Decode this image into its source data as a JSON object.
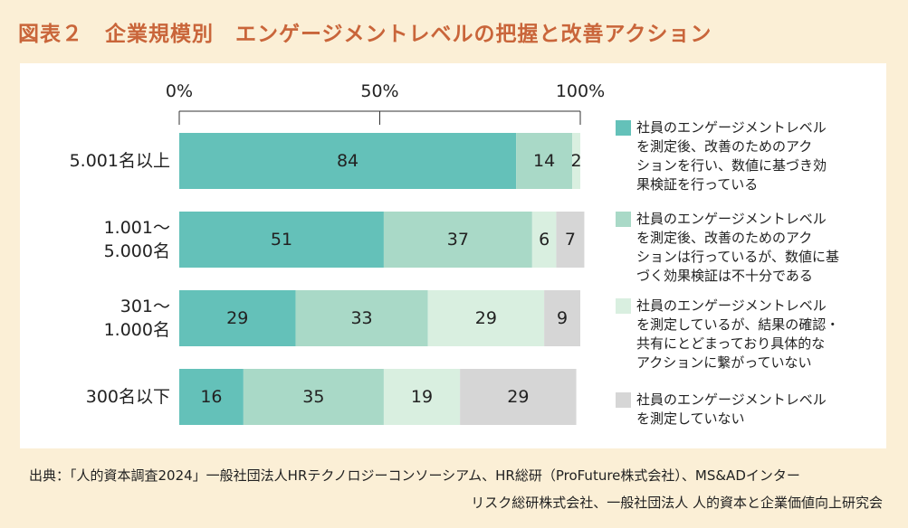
{
  "title": "図表２　企業規模別　エンゲージメントレベルの把握と改善アクション",
  "chart_data": {
    "type": "bar",
    "orientation": "horizontal",
    "stacked": true,
    "xlim": [
      0,
      100
    ],
    "x_ticks": [
      "0%",
      "50%",
      "100%"
    ],
    "categories": [
      "5.001名以上",
      "1.001～\n5.000名",
      "301～\n1.000名",
      "300名以下"
    ],
    "category_lines": [
      [
        "5.001名以上"
      ],
      [
        "1.001～",
        "5.000名"
      ],
      [
        "301～",
        "1.000名"
      ],
      [
        "300名以下"
      ]
    ],
    "series": [
      {
        "name": "社員のエンゲージメントレベルを測定後、改善のためのアクションを行い、数値に基づき効果検証を行っている",
        "color": "#64c1b9",
        "values": [
          84,
          51,
          29,
          16
        ]
      },
      {
        "name": "社員のエンゲージメントレベルを測定後、改善のためのアクションは行っているが、数値に基づく効果検証は不十分である",
        "color": "#a9d9c7",
        "values": [
          14,
          37,
          33,
          35
        ]
      },
      {
        "name": "社員のエンゲージメントレベルを測定しているが、結果の確認・共有にとどまっており具体的なアクションに繋がっていない",
        "color": "#d9efe0",
        "values": [
          2,
          6,
          29,
          19
        ]
      },
      {
        "name": "社員のエンゲージメントレベルを測定していない",
        "color": "#d6d6d6",
        "values": [
          0,
          7,
          9,
          29
        ]
      }
    ],
    "legend_lines": [
      [
        "社員のエンゲージメントレベル",
        "を測定後、改善のためのアク",
        "ションを行い、数値に基づき効",
        "果検証を行っている"
      ],
      [
        "社員のエンゲージメントレベル",
        "を測定後、改善のためのアク",
        "ションは行っているが、数値に基",
        "づく効果検証は不十分である"
      ],
      [
        "社員のエンゲージメントレベル",
        "を測定しているが、結果の確認・",
        "共有にとどまっており具体的な",
        "アクションに繋がっていない"
      ],
      [
        "社員のエンゲージメントレベル",
        "を測定していない"
      ]
    ],
    "legend_position": "right"
  },
  "source": {
    "line1": "出典：「人的資本調査2024」一般社団法人HRテクノロジーコンソーシアム、HR総研（ProFuture株式会社）、MS&ADインター",
    "line2": "リスク総研株式会社、一般社団法人 人的資本と企業価値向上研究会"
  }
}
